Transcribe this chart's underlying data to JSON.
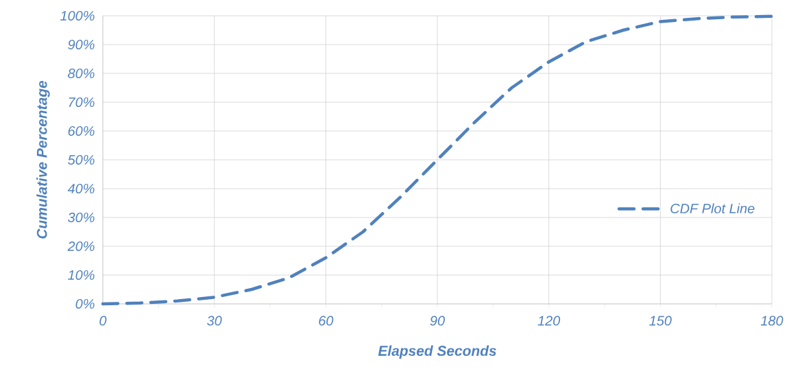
{
  "chart_data": {
    "type": "line",
    "xlabel": "Elapsed Seconds",
    "ylabel": "Cumulative Percentage",
    "x": [
      0,
      10,
      20,
      30,
      40,
      50,
      60,
      70,
      80,
      90,
      100,
      110,
      120,
      130,
      140,
      150,
      160,
      170,
      180
    ],
    "series": [
      {
        "name": "CDF Plot Line",
        "color": "#4f81bd",
        "values": [
          0,
          0.3,
          1,
          2.3,
          5,
          9,
          16,
          25,
          37,
          50,
          63,
          75,
          84,
          91,
          95,
          98,
          99,
          99.6,
          99.8
        ]
      }
    ],
    "xlim": [
      0,
      180
    ],
    "xticks": [
      0,
      30,
      60,
      90,
      120,
      150,
      180
    ],
    "ylim": [
      0,
      100
    ],
    "yticks": [
      {
        "value": 0,
        "label": "0%"
      },
      {
        "value": 10,
        "label": "10%"
      },
      {
        "value": 20,
        "label": "20%"
      },
      {
        "value": 30,
        "label": "30%"
      },
      {
        "value": 40,
        "label": "40%"
      },
      {
        "value": 50,
        "label": "50%"
      },
      {
        "value": 60,
        "label": "60%"
      },
      {
        "value": 70,
        "label": "70%"
      },
      {
        "value": 80,
        "label": "80%"
      },
      {
        "value": 90,
        "label": "90%"
      },
      {
        "value": 100,
        "label": "100%"
      }
    ],
    "grid": true,
    "legend": "right",
    "marker": "none",
    "line_style": "dashed"
  }
}
